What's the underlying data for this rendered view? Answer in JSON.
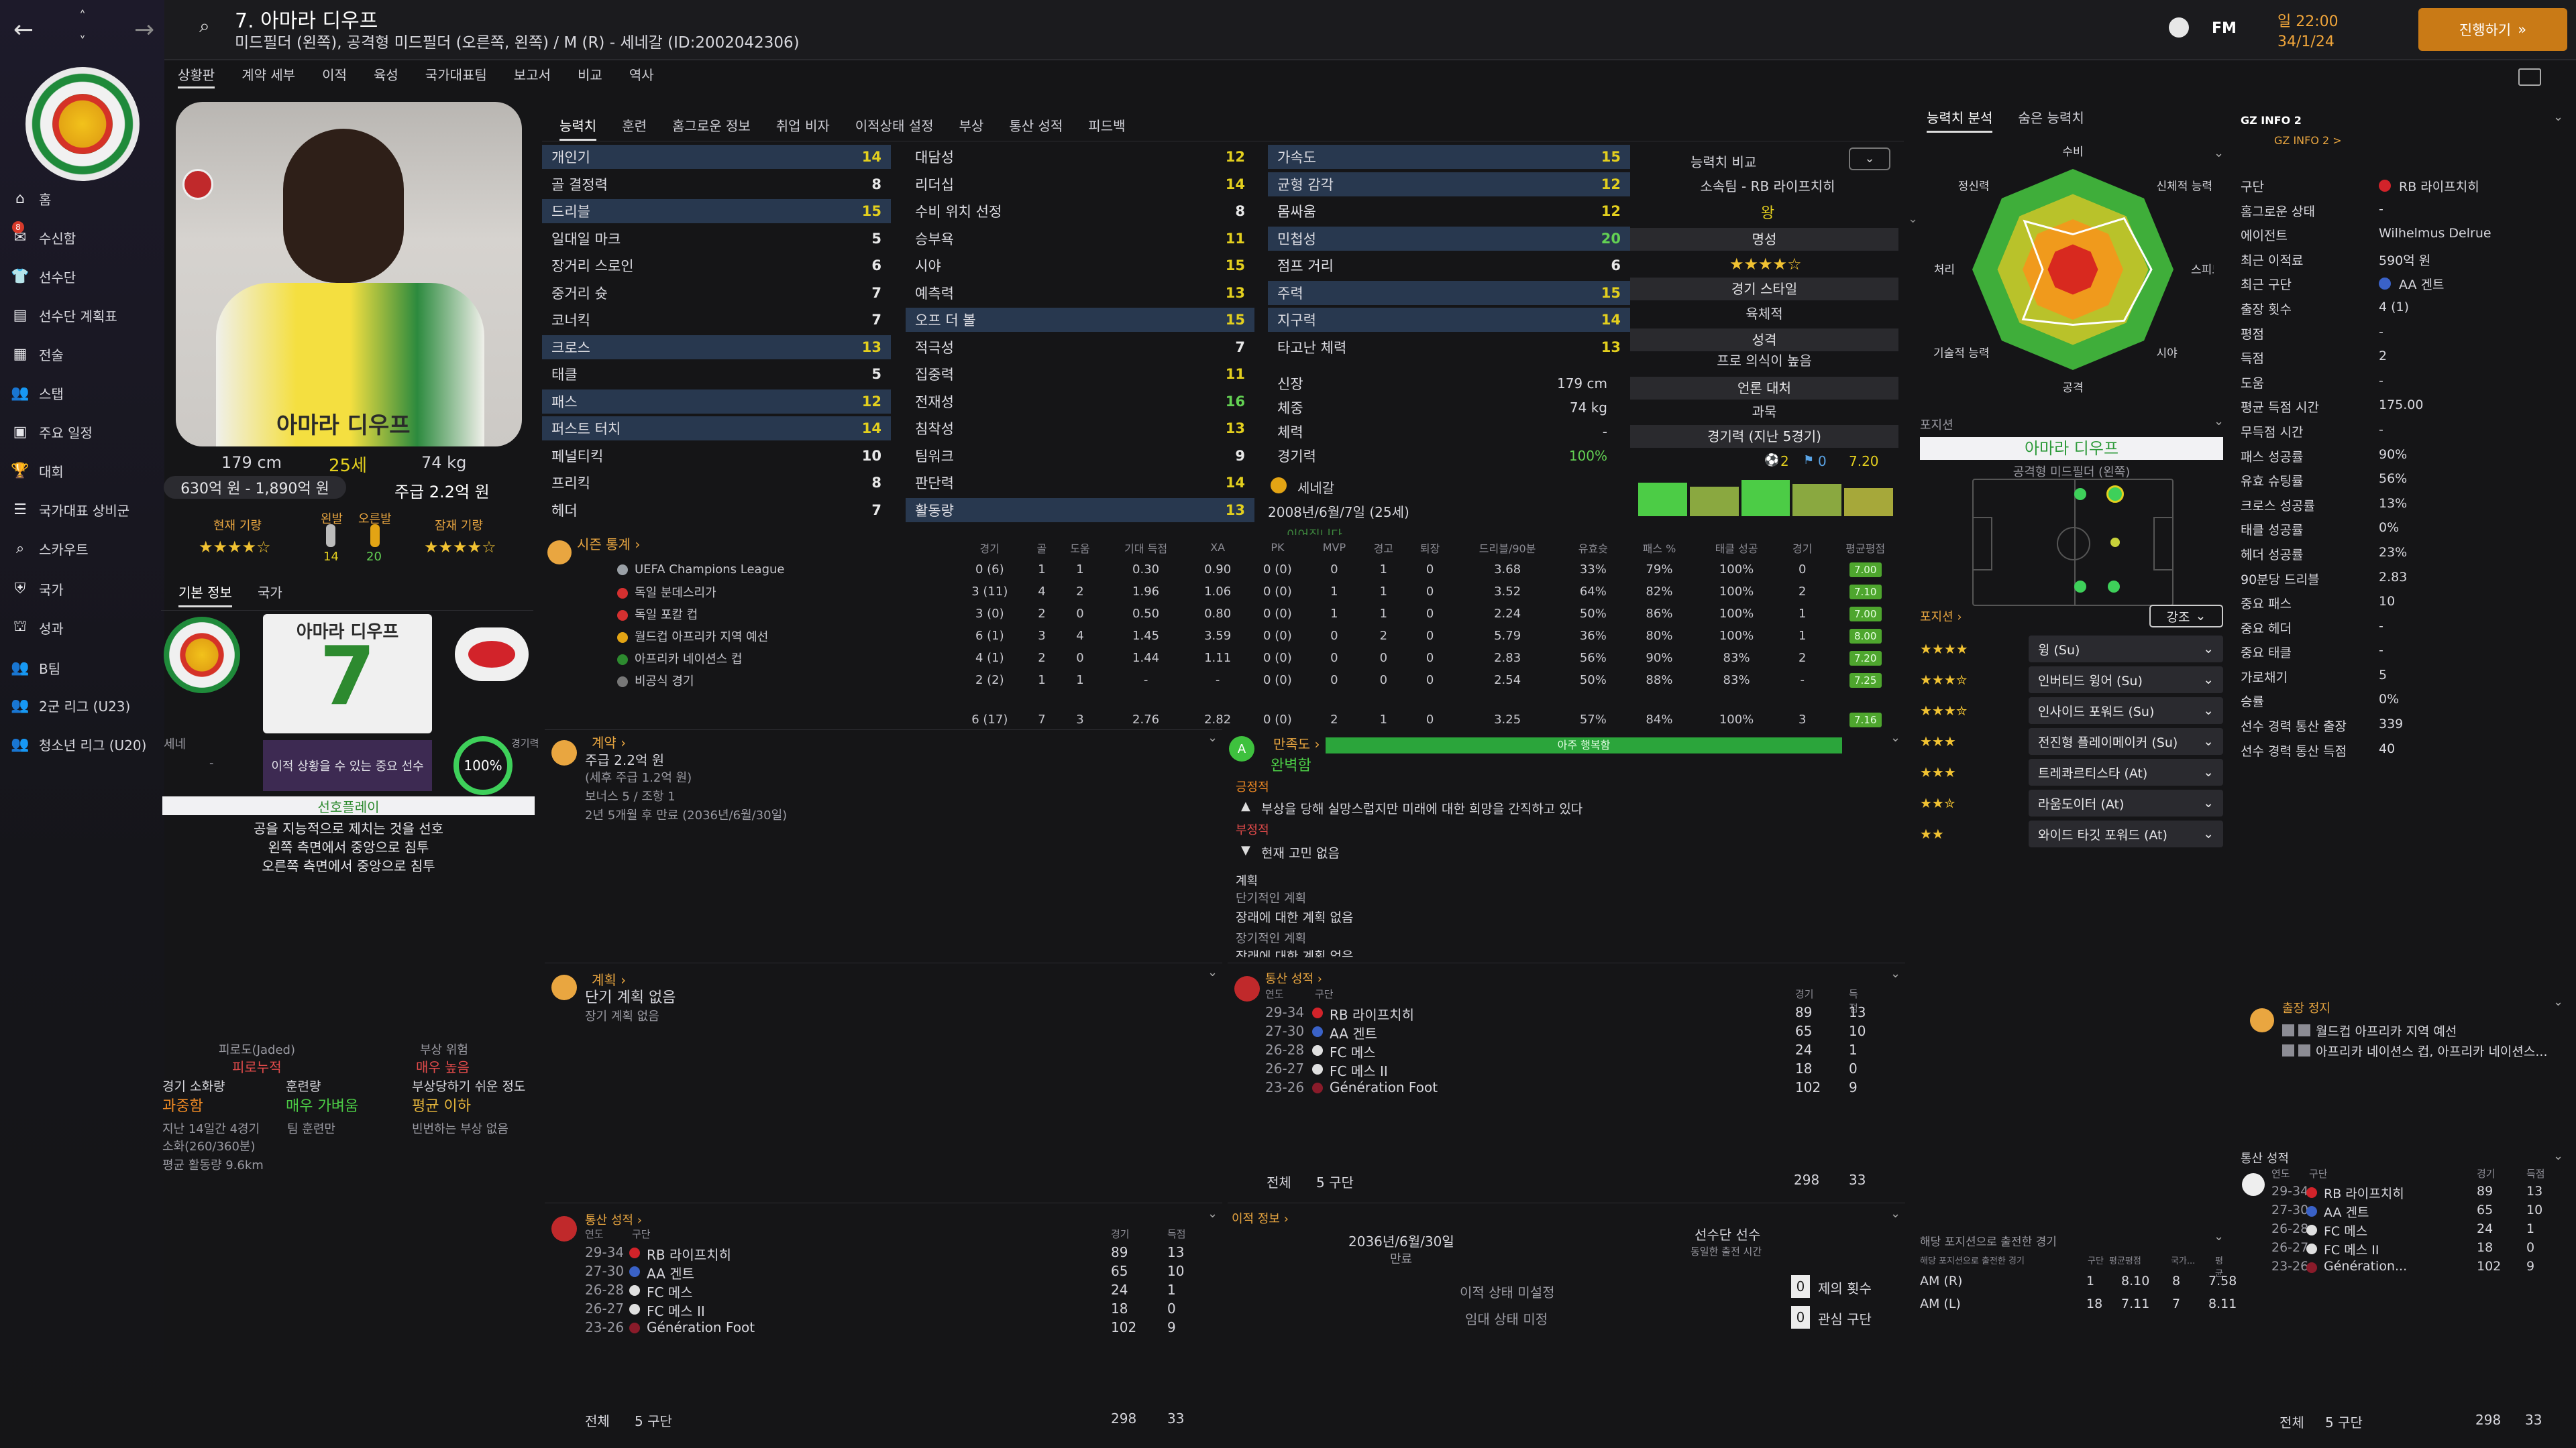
{
  "colors": {
    "accent": "#e9a640",
    "green": "#4ccc46",
    "yellow": "#e3cf1e",
    "red": "#e34b4b",
    "highlight": "#28384f",
    "continue": "#c97a16"
  },
  "topbar": {
    "player_title": "7. 아마라 디우프",
    "player_sub": "미드필더 (왼쪽), 공격형 미드필더 (오른쪽, 왼쪽) / M (R) - 세네갈 (ID:2002042306)",
    "fm_label": "FM",
    "time": "일 22:00",
    "date": "34/1/24",
    "continue_label": "진행하기"
  },
  "sidebar": {
    "items": [
      {
        "icon": "home-icon",
        "label": "홈"
      },
      {
        "icon": "inbox-icon",
        "label": "수신함"
      },
      {
        "icon": "squad-icon",
        "label": "선수단"
      },
      {
        "icon": "plan-icon",
        "label": "선수단 계획표"
      },
      {
        "icon": "tactics-icon",
        "label": "전술"
      },
      {
        "icon": "staff-icon",
        "label": "스탭"
      },
      {
        "icon": "calendar-icon",
        "label": "주요 일정"
      },
      {
        "icon": "trophy-icon",
        "label": "대회"
      },
      {
        "icon": "list-icon",
        "label": "국가대표 상비군"
      },
      {
        "icon": "scouting-icon",
        "label": "스카우트"
      },
      {
        "icon": "shield-icon",
        "label": "국가"
      },
      {
        "icon": "club-icon",
        "label": "성과"
      },
      {
        "icon": "team-icon",
        "label": "B팀"
      },
      {
        "icon": "team-icon",
        "label": "2군 리그 (U23)"
      },
      {
        "icon": "team-icon",
        "label": "청소년 리그 (U20)"
      }
    ],
    "inbox_badge": "8"
  },
  "menu": [
    "상황판",
    "계약 세부",
    "이적",
    "육성",
    "국가대표팀",
    "보고서",
    "비교",
    "역사"
  ],
  "profile": {
    "height": "179 cm",
    "age": "25세",
    "weight": "74 kg",
    "value": "630억 원 - 1,890억 원",
    "wage": "주급 2.2억 원",
    "current_ability_label": "현재 기량",
    "potential_ability_label": "잠재 기량",
    "left_foot_label": "왼발",
    "right_foot_label": "오른발",
    "left_foot": "14",
    "right_foot": "20",
    "shirt_name": "아마라 디우프",
    "shirt_number": "7",
    "basic_tab": "기본 정보",
    "nation_tab": "국가",
    "nation_abbr": "세네",
    "bottom_dash": "-",
    "status_msg": "이적 상황을 수 있는 중요 선수",
    "fitness_pct": "100%",
    "fitness_label": "경기력",
    "pref_move_title": "선호플레이",
    "pref_moves": [
      "공을 지능적으로 제치는 것을 선호",
      "왼쪽 측면에서 중앙으로 침투",
      "오른쪽 측면에서 중앙으로 침투"
    ],
    "fatigue_label": "피로도(Jaded)",
    "fatigue_value": "피로누적",
    "injury_risk_label": "부상 위험",
    "injury_risk_value": "매우 높음",
    "match_load_label": "경기 소화량",
    "match_load_value": "과중함",
    "training_label": "훈련량",
    "training_value": "매우 가벼움",
    "injury_prone_label": "부상당하기 쉬운 정도",
    "injury_prone_value": "평균 이하",
    "load_detail1": "지난 14일간 4경기",
    "load_detail2": "소화(260/360분)",
    "load_detail3": "평균 활동량 9.6km",
    "training_detail": "팀 훈련만",
    "injury_detail": "빈번하는 부상 없음"
  },
  "tabs": [
    "능력치",
    "훈련",
    "홈그로운 정보",
    "취업 비자",
    "이적상태 설정",
    "부상",
    "통산 성적",
    "피드백"
  ],
  "attrs": {
    "technical": [
      [
        "개인기",
        "14"
      ],
      [
        "골 결정력",
        "8"
      ],
      [
        "드리블",
        "15"
      ],
      [
        "일대일 마크",
        "5"
      ],
      [
        "장거리 스로인",
        "6"
      ],
      [
        "중거리 슛",
        "7"
      ],
      [
        "코너킥",
        "7"
      ],
      [
        "크로스",
        "13"
      ],
      [
        "태클",
        "5"
      ],
      [
        "패스",
        "12"
      ],
      [
        "퍼스트 터치",
        "14"
      ],
      [
        "페널티킥",
        "10"
      ],
      [
        "프리킥",
        "8"
      ],
      [
        "헤더",
        "7"
      ]
    ],
    "mental": [
      [
        "대담성",
        "12"
      ],
      [
        "리더십",
        "14"
      ],
      [
        "수비 위치 선정",
        "8"
      ],
      [
        "승부욕",
        "11"
      ],
      [
        "시야",
        "15"
      ],
      [
        "예측력",
        "13"
      ],
      [
        "오프 더 볼",
        "15"
      ],
      [
        "적극성",
        "7"
      ],
      [
        "집중력",
        "11"
      ],
      [
        "전재성",
        "16"
      ],
      [
        "침착성",
        "13"
      ],
      [
        "팀워크",
        "9"
      ],
      [
        "판단력",
        "14"
      ],
      [
        "활동량",
        "13"
      ]
    ],
    "physical": [
      [
        "가속도",
        "15"
      ],
      [
        "균형 감각",
        "12"
      ],
      [
        "몸싸움",
        "12"
      ],
      [
        "민첩성",
        "20"
      ],
      [
        "점프 거리",
        "6"
      ],
      [
        "주력",
        "15"
      ],
      [
        "지구력",
        "14"
      ],
      [
        "타고난 체력",
        "13"
      ]
    ],
    "bio": [
      [
        "신장",
        "179 cm"
      ],
      [
        "체중",
        "74 kg"
      ],
      [
        "체력",
        "-"
      ],
      [
        "경기력",
        "100%"
      ]
    ],
    "nation": "세네갈",
    "dob": "2008년/6월/7일 (25세)",
    "more": "이어집니다"
  },
  "compare": {
    "label": "능력치 비교",
    "club": "소속팀 - RB 라이프치히",
    "club_value": "왕",
    "reputation_label": "명성",
    "style_label": "경기 스타일",
    "style_value": "육체적",
    "personality_label": "성격",
    "personality_value": "프로 의식이 높음",
    "media_label": "언론 대처",
    "media_value": "과묵",
    "form_label": "경기력 (지난 5경기)",
    "form_goals": "2",
    "form_assists": "0",
    "form_rating": "7.20",
    "form_bars": [
      0.5,
      0.35,
      0.6,
      0.45,
      0.3
    ]
  },
  "season": {
    "title": "시즌 통계",
    "headers": [
      "경기",
      "골",
      "도움",
      "기대 득점",
      "XA",
      "PK",
      "MVP",
      "경고",
      "퇴장",
      "드리블/90분",
      "유효슛",
      "패스 %",
      "태클 성공",
      "경기",
      "평균평점"
    ],
    "rows": [
      [
        "UEFA Champions League",
        "0 (6)",
        "1",
        "1",
        "0.30",
        "0.90",
        "0 (0)",
        "0",
        "1",
        "0",
        "3.68",
        "33%",
        "79%",
        "100%",
        "0",
        "7.00"
      ],
      [
        "독일 분데스리가",
        "3 (11)",
        "4",
        "2",
        "1.96",
        "1.06",
        "0 (0)",
        "1",
        "1",
        "0",
        "3.52",
        "64%",
        "82%",
        "100%",
        "2",
        "7.10"
      ],
      [
        "독일 포칼 컵",
        "3 (0)",
        "2",
        "0",
        "0.50",
        "0.80",
        "0 (0)",
        "1",
        "1",
        "0",
        "2.24",
        "50%",
        "86%",
        "100%",
        "1",
        "7.00"
      ],
      [
        "월드컵 아프리카 지역 예선",
        "6 (1)",
        "3",
        "4",
        "1.45",
        "3.59",
        "0 (0)",
        "0",
        "2",
        "0",
        "5.79",
        "36%",
        "80%",
        "100%",
        "1",
        "8.00"
      ],
      [
        "아프리카 네이션스 컵",
        "4 (1)",
        "2",
        "0",
        "1.44",
        "1.11",
        "0 (0)",
        "0",
        "0",
        "0",
        "2.83",
        "56%",
        "90%",
        "83%",
        "2",
        "7.20"
      ],
      [
        "비공식 경기",
        "2 (2)",
        "1",
        "1",
        "-",
        "-",
        "0 (0)",
        "0",
        "0",
        "0",
        "2.54",
        "50%",
        "88%",
        "83%",
        "-",
        "7.25"
      ]
    ],
    "total": [
      "6 (17)",
      "7",
      "3",
      "2.76",
      "2.82",
      "0 (0)",
      "2",
      "1",
      "0",
      "3.25",
      "57%",
      "84%",
      "100%",
      "3",
      "7.16"
    ]
  },
  "contract": {
    "title": "계약",
    "wage": "주급 2.2억 원",
    "wage_detail": "(세후 주급 1.2억 원)",
    "bonus": "보너스 5 / 조항 1",
    "expiry": "2년 5개월 후 만료 (2036년/6월/30일)"
  },
  "happiness": {
    "title": "만족도",
    "value": "완벽함",
    "bar_label": "아주 행복함",
    "positive_label": "긍정적",
    "positive_item": "부상을 당해 실망스럽지만 미래에 대한 희망을 간직하고 있다",
    "negative_label": "부정적",
    "negative_item": "현재 고민 없음",
    "plan_label": "계획",
    "short_plan_label": "단기적인 계획",
    "short_plan": "장래에 대한 계획 없음",
    "long_plan_label": "장기적인 계획",
    "long_plan": "장래에 대한 계획 없음"
  },
  "plans": {
    "title": "계획",
    "short": "단기 계획 없음",
    "long": "장기 계획 없음"
  },
  "career": {
    "title": "통산 성적",
    "year_label": "연도",
    "club_label": "구단",
    "apps_label": "경기",
    "goals_label": "득점",
    "rows": [
      [
        "29-34",
        "RB 라이프치히",
        "89",
        "13"
      ],
      [
        "27-30",
        "AA 겐트",
        "65",
        "10"
      ],
      [
        "26-28",
        "FC 메스",
        "24",
        "1"
      ],
      [
        "26-27",
        "FC 메스 II",
        "18",
        "0"
      ],
      [
        "23-26",
        "Génération Foot",
        "102",
        "9"
      ]
    ],
    "total_label": "전체",
    "total_clubs": "5 구단",
    "total_apps": "298",
    "total_goals": "33"
  },
  "transfer": {
    "title": "이적 정보",
    "contract_end": "2036년/6월/30일",
    "contract_end_label": "만료",
    "squad_status": "선수단 선수",
    "squad_status_sub": "동일한 출전 시간",
    "transfer_status": "이적 상태 미설정",
    "loan_status": "임대 상태 미정",
    "offers_count": "0",
    "offers_label": "제의 횟수",
    "interest_count": "0",
    "interest_label": "관심 구단"
  },
  "analysis": {
    "tab1": "능력치 분석",
    "tab2": "숨은 능력치",
    "axes": [
      "수비",
      "신체적 능력",
      "스피드",
      "시야",
      "공격",
      "기술적 능력",
      "공중볼 처리",
      "정신력"
    ],
    "values": [
      0.35,
      0.72,
      0.78,
      0.72,
      0.55,
      0.7,
      0.3,
      0.68
    ]
  },
  "positions": {
    "label": "포지션",
    "name": "아마라 디우프",
    "role": "공격형 미드필더 (왼쪽)",
    "roles_label": "포지션",
    "strength_label": "강조",
    "roles": [
      [
        "4",
        "윙 (Su)"
      ],
      [
        "3.5",
        "인버티드 윙어 (Su)"
      ],
      [
        "3.5",
        "인사이드 포워드 (Su)"
      ],
      [
        "3",
        "전진형 플레이메이커 (Su)"
      ],
      [
        "3",
        "트레콰르티스타 (At)"
      ],
      [
        "2.5",
        "라움도이터 (At)"
      ],
      [
        "2",
        "와이드 타깃 포워드 (At)"
      ]
    ],
    "exp_title": "해당 포지션으로 출전한 경기",
    "exp_header": [
      "해당 포지션으로 출전한 경기",
      "구단",
      "평균평점",
      "국가...",
      "평균"
    ],
    "exp_rows": [
      [
        "AM (R)",
        "1",
        "8.10",
        "8",
        "7.58"
      ],
      [
        "AM (L)",
        "18",
        "7.11",
        "7",
        "8.11"
      ]
    ]
  },
  "gz": {
    "title": "GZ INFO 2",
    "sub": "GZ INFO 2 >",
    "rows": [
      [
        "구단",
        "RB 라이프치히"
      ],
      [
        "홈그로운 상태",
        "-"
      ],
      [
        "에이전트",
        "Wilhelmus Delrue"
      ],
      [
        "최근 이적료",
        "590억 원"
      ],
      [
        "최근 구단",
        "AA 겐트"
      ],
      [
        "출장 횟수",
        "4 (1)"
      ],
      [
        "평점",
        "-"
      ],
      [
        "득점",
        "2"
      ],
      [
        "도움",
        "-"
      ],
      [
        "평균 득점 시간",
        "175.00"
      ],
      [
        "무득점 시간",
        "-"
      ],
      [
        "패스 성공률",
        "90%"
      ],
      [
        "유효 슈팅률",
        "56%"
      ],
      [
        "크로스 성공률",
        "13%"
      ],
      [
        "태클 성공률",
        "0%"
      ],
      [
        "헤더 성공률",
        "23%"
      ],
      [
        "90분당 드리블",
        "2.83"
      ],
      [
        "중요 패스",
        "10"
      ],
      [
        "중요 헤더",
        "-"
      ],
      [
        "중요 태클",
        "-"
      ],
      [
        "가로채기",
        "5"
      ],
      [
        "승률",
        "0%"
      ],
      [
        "선수 경력 통산 출장",
        "339"
      ],
      [
        "선수 경력 통산 득점",
        "40"
      ]
    ],
    "suspension_title": "출장 정지",
    "suspensions": [
      "월드컵 아프리카 지역 예선",
      "아프리카 네이션스 컵, 아프리카 네이션스..."
    ],
    "career_title": "통산 성적",
    "career_rows": [
      [
        "29-34",
        "RB 라이프치히",
        "89",
        "13"
      ],
      [
        "27-30",
        "AA 겐트",
        "65",
        "10"
      ],
      [
        "26-28",
        "FC 메스",
        "24",
        "1"
      ],
      [
        "26-27",
        "FC 메스 II",
        "18",
        "0"
      ],
      [
        "23-26",
        "Génération...",
        "102",
        "9"
      ]
    ]
  }
}
